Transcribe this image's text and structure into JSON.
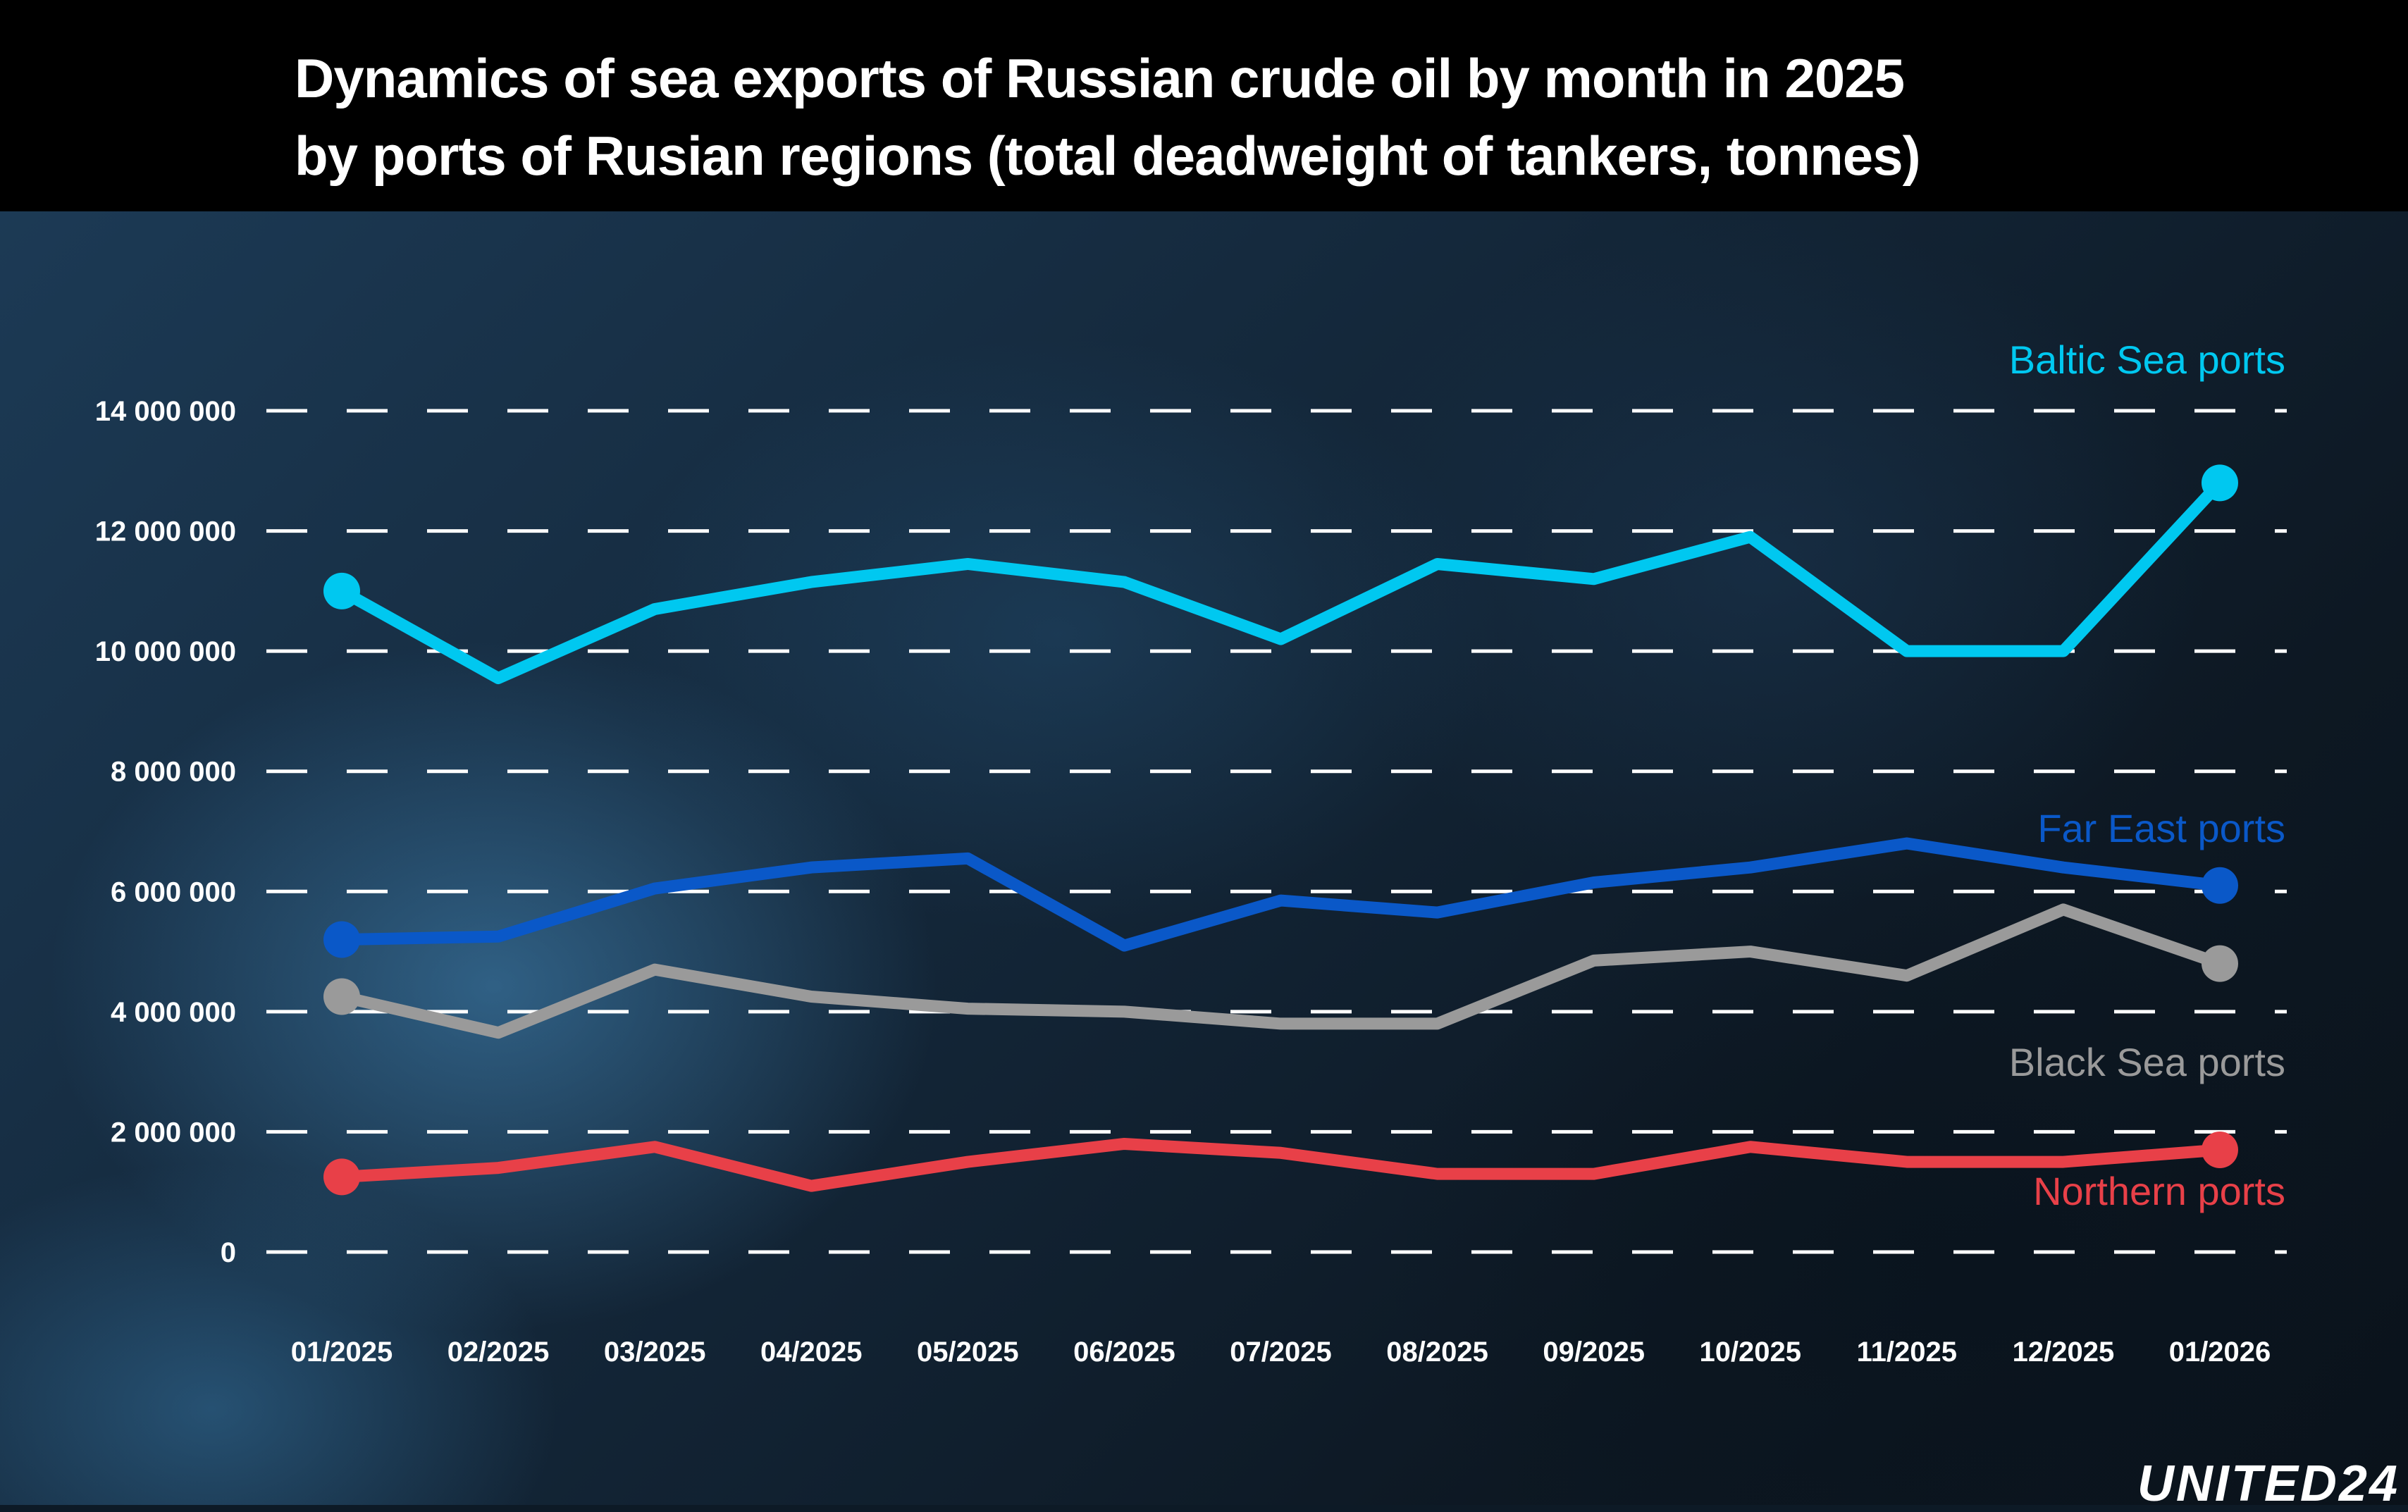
{
  "header": {
    "title_line1": "Dynamics of sea exports of Russian crude oil by month in 2025",
    "title_line2": "by ports of Rusian regions (total deadweight of tankers, tonnes)"
  },
  "brand": {
    "logo_text": "UNITED24"
  },
  "chart_data": {
    "type": "line",
    "title": "Dynamics of sea exports of Russian crude oil by month in 2025 by ports of Rusian regions (total deadweight of tankers, tonnes)",
    "xlabel": "",
    "ylabel": "",
    "categories": [
      "01/2025",
      "02/2025",
      "03/2025",
      "04/2025",
      "05/2025",
      "06/2025",
      "07/2025",
      "08/2025",
      "09/2025",
      "10/2025",
      "11/2025",
      "12/2025",
      "01/2026"
    ],
    "y_ticks": [
      0,
      2000000,
      4000000,
      6000000,
      8000000,
      10000000,
      12000000,
      14000000
    ],
    "y_tick_labels": [
      "0",
      "2 000 000",
      "4 000 000",
      "6 000 000",
      "8 000 000",
      "10 000 000",
      "12 000 000",
      "14 000 000"
    ],
    "ylim": [
      0,
      14000000
    ],
    "grid": "dashed horizontal",
    "legend": "inline labels at right end of lines",
    "series": [
      {
        "name": "Baltic Sea ports",
        "color": "#00c8f0",
        "values": [
          11000000,
          9550000,
          10700000,
          11150000,
          11450000,
          11150000,
          10200000,
          11450000,
          11200000,
          11900000,
          10000000,
          10000000,
          12800000
        ]
      },
      {
        "name": "Far East ports",
        "color": "#0a58c8",
        "values": [
          5200000,
          5250000,
          6050000,
          6400000,
          6550000,
          5100000,
          5850000,
          5650000,
          6150000,
          6400000,
          6800000,
          6400000,
          6100000
        ]
      },
      {
        "name": "Black Sea ports",
        "color": "#9a9a9a",
        "values": [
          4250000,
          3650000,
          4700000,
          4250000,
          4050000,
          4000000,
          3800000,
          3800000,
          4850000,
          5000000,
          4600000,
          5700000,
          4800000
        ]
      },
      {
        "name": "Northern ports",
        "color": "#e84048",
        "values": [
          1250000,
          1400000,
          1750000,
          1100000,
          1500000,
          1800000,
          1650000,
          1300000,
          1300000,
          1750000,
          1500000,
          1500000,
          1700000
        ]
      }
    ]
  }
}
